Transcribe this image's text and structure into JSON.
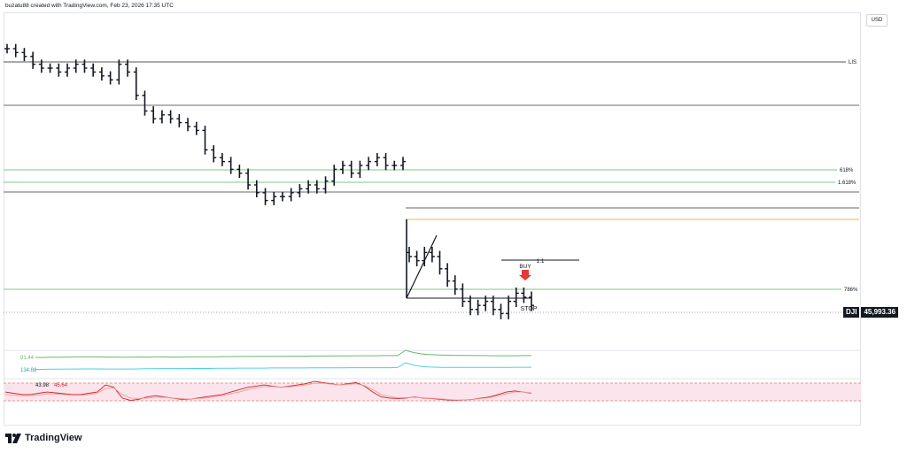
{
  "header": {
    "text": "buzatu88 created with TradingView.com, Feb 23, 2026 17:35 UTC"
  },
  "currency": "USD",
  "price_tag": {
    "symbol": "DJI",
    "value": "45,993.36"
  },
  "branding": {
    "logo_text": "TradingView",
    "logo_icon": "tradingview-logo-icon"
  },
  "colors": {
    "accent_green": "#66bb6a",
    "accent_orange": "#f5b342",
    "cyan": "#4dd0e1",
    "red": "#e53935",
    "pink_band": "#fce4ec",
    "text": "#131722"
  },
  "chart_data": {
    "type": "ohlc",
    "title": "",
    "xlabel": "",
    "ylabel": "",
    "levels": [
      {
        "label": "LIS",
        "style": "dark"
      },
      {
        "label": "",
        "style": "gray"
      },
      {
        "label": "618%",
        "style": "green"
      },
      {
        "label": "1.618%",
        "style": "green"
      },
      {
        "label": "",
        "style": "gray"
      },
      {
        "label": "",
        "style": "gray"
      },
      {
        "label": "",
        "style": "orange"
      },
      {
        "label": "786%",
        "style": "green"
      },
      {
        "label": "",
        "style": "dotted"
      }
    ],
    "annotations": {
      "ratio": "1:1",
      "buy": "BUY",
      "stop": "STOP"
    },
    "historical_closes": [
      100,
      99,
      98,
      96,
      95,
      95,
      94,
      95,
      96,
      95,
      94,
      93,
      92,
      96,
      94,
      88,
      84,
      82,
      83,
      82,
      81,
      80,
      79,
      74,
      72,
      71,
      69,
      68,
      65,
      63,
      61,
      62,
      62,
      63,
      64,
      65,
      64,
      66,
      69,
      70,
      68,
      70,
      71,
      72,
      70,
      70,
      71
    ],
    "projection_closes": [
      58,
      57,
      59,
      58,
      55,
      52,
      50,
      47,
      45,
      46,
      47,
      45,
      44,
      47,
      49,
      48,
      46
    ],
    "indicators": {
      "line_1": {
        "value": "91.44",
        "values": [
          0.5,
          0.5,
          0.51,
          0.52,
          0.53,
          0.54,
          0.55,
          0.55,
          0.54,
          0.53,
          0.53,
          0.52,
          0.52,
          0.53,
          0.53,
          0.54,
          0.54,
          0.53,
          0.53,
          0.54,
          0.54,
          0.55,
          0.55,
          0.55,
          0.56,
          0.56,
          0.57,
          0.57,
          0.58,
          0.58,
          0.58,
          0.58,
          0.59,
          0.59,
          0.59,
          0.6,
          0.6,
          0.6,
          0.61,
          0.61,
          0.61,
          0.62,
          0.62,
          0.62,
          0.63,
          0.63,
          0.63,
          1.0,
          0.85,
          0.75,
          0.7,
          0.68,
          0.66,
          0.65,
          0.64,
          0.64,
          0.63,
          0.63,
          0.62,
          0.62,
          0.62,
          0.62,
          0.63,
          0.63
        ]
      },
      "line_2": {
        "value": "134.88",
        "values": [
          0.55,
          0.56,
          0.57,
          0.57,
          0.58,
          0.58,
          0.59,
          0.59,
          0.59,
          0.58,
          0.58,
          0.58,
          0.58,
          0.59,
          0.6,
          0.6,
          0.61,
          0.61,
          0.61,
          0.61,
          0.62,
          0.62,
          0.62,
          0.63,
          0.63,
          0.63,
          0.64,
          0.64,
          0.64,
          0.64,
          0.65,
          0.65,
          0.65,
          0.65,
          0.65,
          0.66,
          0.66,
          0.66,
          0.66,
          0.66,
          0.67,
          0.67,
          0.67,
          0.67,
          0.67,
          0.67,
          0.68,
          1.0,
          0.85,
          0.76,
          0.72,
          0.7,
          0.69,
          0.69,
          0.69,
          0.69,
          0.69,
          0.69,
          0.69,
          0.69,
          0.69,
          0.7,
          0.7,
          0.7
        ]
      },
      "osc_labels": [
        "43.98",
        "45.64"
      ],
      "osc_a": [
        0.55,
        0.5,
        0.45,
        0.45,
        0.5,
        0.55,
        0.52,
        0.48,
        0.45,
        0.45,
        0.5,
        0.55,
        0.85,
        0.75,
        0.3,
        0.2,
        0.25,
        0.35,
        0.4,
        0.35,
        0.3,
        0.25,
        0.25,
        0.3,
        0.35,
        0.4,
        0.45,
        0.55,
        0.65,
        0.75,
        0.8,
        0.85,
        0.8,
        0.75,
        0.8,
        0.85,
        0.9,
        1.0,
        0.95,
        0.9,
        0.85,
        0.9,
        0.95,
        0.8,
        0.55,
        0.35,
        0.3,
        0.28,
        0.3,
        0.35,
        0.3,
        0.28,
        0.25,
        0.22,
        0.2,
        0.22,
        0.25,
        0.3,
        0.35,
        0.45,
        0.55,
        0.6,
        0.55,
        0.5
      ],
      "osc_b": [
        0.45,
        0.42,
        0.4,
        0.4,
        0.42,
        0.48,
        0.47,
        0.45,
        0.42,
        0.42,
        0.45,
        0.5,
        0.7,
        0.72,
        0.45,
        0.3,
        0.28,
        0.3,
        0.33,
        0.33,
        0.3,
        0.28,
        0.26,
        0.28,
        0.3,
        0.35,
        0.4,
        0.48,
        0.55,
        0.65,
        0.72,
        0.78,
        0.78,
        0.75,
        0.77,
        0.8,
        0.85,
        0.92,
        0.92,
        0.88,
        0.85,
        0.87,
        0.9,
        0.82,
        0.65,
        0.45,
        0.36,
        0.32,
        0.32,
        0.33,
        0.31,
        0.29,
        0.27,
        0.24,
        0.22,
        0.22,
        0.24,
        0.28,
        0.32,
        0.4,
        0.48,
        0.55,
        0.55,
        0.52
      ]
    }
  }
}
